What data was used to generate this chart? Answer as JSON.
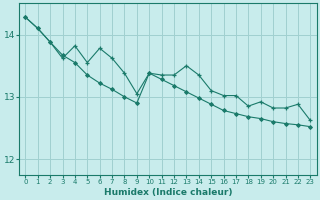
{
  "xlabel": "Humidex (Indice chaleur)",
  "bg_color": "#c8ecec",
  "grid_color": "#a0d0d0",
  "line_color": "#1a7a6a",
  "xlim": [
    -0.5,
    23.5
  ],
  "ylim": [
    11.75,
    14.5
  ],
  "yticks": [
    12,
    13,
    14
  ],
  "xticks": [
    0,
    1,
    2,
    3,
    4,
    5,
    6,
    7,
    8,
    9,
    10,
    11,
    12,
    13,
    14,
    15,
    16,
    17,
    18,
    19,
    20,
    21,
    22,
    23
  ],
  "zigzag_y": [
    14.28,
    14.1,
    13.88,
    13.62,
    13.82,
    13.55,
    13.78,
    13.62,
    13.38,
    13.05,
    13.38,
    13.35,
    13.35,
    13.5,
    13.35,
    13.1,
    13.02,
    13.02,
    12.85,
    12.92,
    12.82,
    12.82,
    12.88,
    12.62
  ],
  "trend_y": [
    14.28,
    14.1,
    13.88,
    13.67,
    13.55,
    13.35,
    13.22,
    13.12,
    13.0,
    12.9,
    13.38,
    13.28,
    13.18,
    13.08,
    12.98,
    12.88,
    12.78,
    12.73,
    12.68,
    12.65,
    12.6,
    12.57,
    12.55,
    12.52
  ]
}
